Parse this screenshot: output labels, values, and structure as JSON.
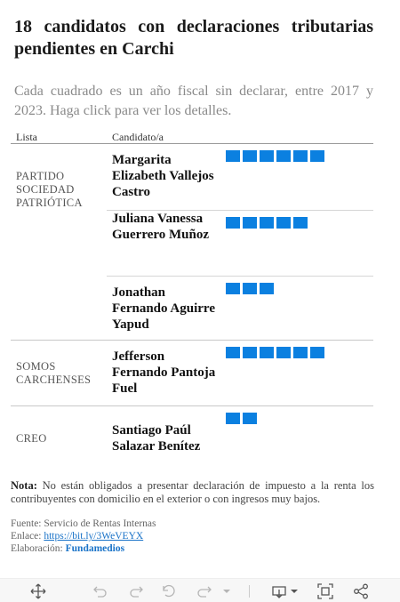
{
  "header": {
    "title": "18 candidatos con declaraciones tributarias pendientes en Carchi",
    "subtitle": "Cada cuadrado es un año fiscal sin declarar, entre 2017 y 2023. Haga click para ver los detalles."
  },
  "table": {
    "col_list": "Lista",
    "col_candidate": "Candidato/a",
    "groups": [
      {
        "party": "PARTIDO SOCIEDAD PATRIÓTICA",
        "candidates": [
          {
            "name": "Margarita Elizabeth Vallejos Castro",
            "years_undeclared": 6
          },
          {
            "name": "Juliana Vanessa Guerrero Muñoz",
            "years_undeclared": 5
          },
          {
            "name": "Jonathan Fernando Aguirre Yapud",
            "years_undeclared": 3
          }
        ]
      },
      {
        "party": "SOMOS CARCHENSES",
        "candidates": [
          {
            "name": "Jefferson Fernando Pantoja Fuel",
            "years_undeclared": 6
          }
        ]
      },
      {
        "party": "CREO",
        "candidates": [
          {
            "name": "Santiago Paúl Salazar Benítez",
            "years_undeclared": 2
          }
        ]
      }
    ]
  },
  "note": {
    "label": "Nota:",
    "text": "No están obligados a presentar declaración de impuesto a la renta los contribuyentes con domicilio en el exterior o con ingresos muy bajos."
  },
  "credits": {
    "source_label": "Fuente:",
    "source": "Servicio de Rentas Internas",
    "link_label": "Enlace:",
    "link": "https://bit.ly/3WeVEYX",
    "by_label": "Elaboración:",
    "by": "Fundamedios"
  },
  "toolbar": {
    "icons": [
      "move-icon",
      "undo-icon",
      "redo-icon",
      "reset-icon",
      "forward-icon",
      "dropdown-icon",
      "download-icon",
      "dropdown-icon",
      "fullscreen-icon",
      "share-icon"
    ]
  },
  "colors": {
    "square": "#0b80e0",
    "link": "#1a73c8"
  }
}
